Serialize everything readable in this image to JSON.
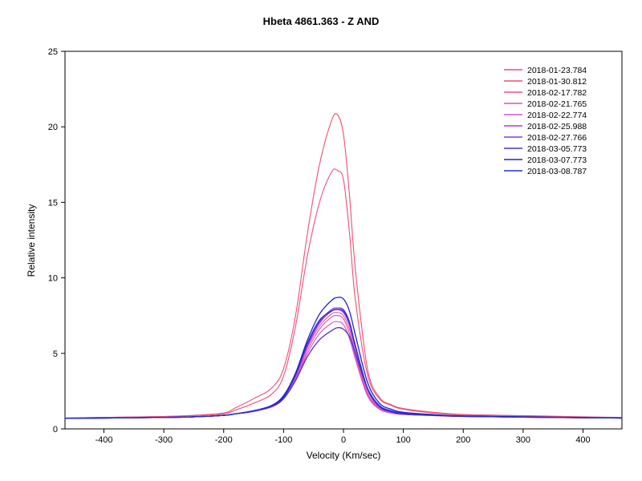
{
  "chart_data": {
    "type": "line",
    "title": "Hbeta 4861.363 - Z AND",
    "xlabel": "Velocity (Km/sec)",
    "ylabel": "Relative intensity",
    "xlim": [
      -465,
      465
    ],
    "ylim": [
      0,
      25
    ],
    "x_ticks": [
      "-400",
      "-300",
      "-200",
      "-100",
      "0",
      "100",
      "200",
      "300",
      "400"
    ],
    "y_ticks": [
      "0",
      "5",
      "10",
      "15",
      "20",
      "25"
    ],
    "grid": false,
    "legend_position": "top-right",
    "x": [
      -465,
      -400,
      -300,
      -250,
      -200,
      -180,
      -150,
      -120,
      -100,
      -80,
      -60,
      -40,
      -20,
      -10,
      0,
      10,
      20,
      40,
      60,
      80,
      100,
      150,
      200,
      300,
      400,
      465
    ],
    "series": [
      {
        "name": "2018-01-23.784",
        "color": "#f0506e",
        "values": [
          0.72,
          0.76,
          0.82,
          0.9,
          1.05,
          1.4,
          2.0,
          2.7,
          4.0,
          7.5,
          13.0,
          17.5,
          20.4,
          20.8,
          19.5,
          15.5,
          10.5,
          4.0,
          2.1,
          1.6,
          1.35,
          1.1,
          0.95,
          0.88,
          0.8,
          0.76
        ]
      },
      {
        "name": "2018-01-30.812",
        "color": "#ee4f78",
        "values": [
          0.72,
          0.76,
          0.82,
          0.88,
          1.0,
          1.25,
          1.7,
          2.3,
          3.5,
          6.8,
          11.5,
          15.0,
          17.0,
          17.1,
          16.5,
          13.0,
          8.5,
          3.6,
          2.0,
          1.55,
          1.3,
          1.05,
          0.93,
          0.86,
          0.78,
          0.74
        ]
      },
      {
        "name": "2018-02-17.782",
        "color": "#e94f93",
        "values": [
          0.7,
          0.72,
          0.76,
          0.8,
          0.9,
          1.0,
          1.15,
          1.45,
          2.0,
          3.3,
          5.2,
          6.6,
          7.4,
          7.5,
          7.3,
          6.3,
          4.8,
          2.3,
          1.35,
          1.05,
          0.95,
          0.88,
          0.82,
          0.78,
          0.74,
          0.72
        ]
      },
      {
        "name": "2018-02-21.765",
        "color": "#e54fb0",
        "values": [
          0.7,
          0.72,
          0.76,
          0.8,
          0.9,
          1.0,
          1.15,
          1.45,
          2.0,
          3.4,
          5.4,
          6.8,
          7.6,
          7.7,
          7.5,
          6.6,
          5.0,
          2.4,
          1.4,
          1.1,
          0.98,
          0.9,
          0.83,
          0.78,
          0.74,
          0.72
        ]
      },
      {
        "name": "2018-02-22.774",
        "color": "#d450d8",
        "values": [
          0.7,
          0.72,
          0.76,
          0.8,
          0.9,
          1.0,
          1.15,
          1.45,
          2.0,
          3.2,
          5.0,
          6.3,
          7.0,
          7.1,
          6.9,
          6.0,
          4.6,
          2.2,
          1.3,
          1.05,
          0.95,
          0.88,
          0.82,
          0.78,
          0.74,
          0.72
        ]
      },
      {
        "name": "2018-02-25.988",
        "color": "#a040e8",
        "values": [
          0.7,
          0.72,
          0.76,
          0.8,
          0.9,
          1.0,
          1.15,
          1.5,
          2.1,
          3.5,
          5.5,
          7.0,
          7.8,
          7.9,
          7.7,
          6.9,
          5.3,
          2.6,
          1.45,
          1.1,
          1.0,
          0.9,
          0.83,
          0.78,
          0.74,
          0.72
        ]
      },
      {
        "name": "2018-02-27.766",
        "color": "#7c3ae0",
        "values": [
          0.7,
          0.72,
          0.76,
          0.8,
          0.9,
          1.0,
          1.2,
          1.55,
          2.2,
          3.6,
          5.6,
          7.1,
          7.9,
          8.0,
          7.9,
          7.1,
          5.5,
          2.7,
          1.5,
          1.15,
          1.0,
          0.9,
          0.83,
          0.78,
          0.74,
          0.72
        ]
      },
      {
        "name": "2018-03-05.773",
        "color": "#4b32d8",
        "values": [
          0.7,
          0.72,
          0.76,
          0.8,
          0.9,
          1.0,
          1.2,
          1.5,
          2.0,
          3.2,
          4.8,
          5.9,
          6.5,
          6.7,
          6.6,
          6.1,
          5.0,
          2.7,
          1.55,
          1.2,
          1.05,
          0.92,
          0.84,
          0.78,
          0.74,
          0.72
        ]
      },
      {
        "name": "2018-03-07.773",
        "color": "#2222d0",
        "values": [
          0.7,
          0.72,
          0.76,
          0.8,
          0.9,
          1.0,
          1.2,
          1.55,
          2.2,
          3.7,
          5.9,
          7.6,
          8.5,
          8.7,
          8.6,
          7.8,
          6.2,
          3.1,
          1.7,
          1.3,
          1.1,
          0.95,
          0.86,
          0.8,
          0.75,
          0.72
        ]
      },
      {
        "name": "2018-03-08.787",
        "color": "#2030c8",
        "values": [
          0.7,
          0.72,
          0.76,
          0.8,
          0.9,
          1.0,
          1.2,
          1.5,
          2.1,
          3.6,
          5.7,
          7.2,
          7.8,
          7.9,
          7.8,
          7.0,
          5.5,
          2.7,
          1.5,
          1.15,
          1.0,
          0.9,
          0.83,
          0.78,
          0.74,
          0.72
        ]
      }
    ]
  }
}
